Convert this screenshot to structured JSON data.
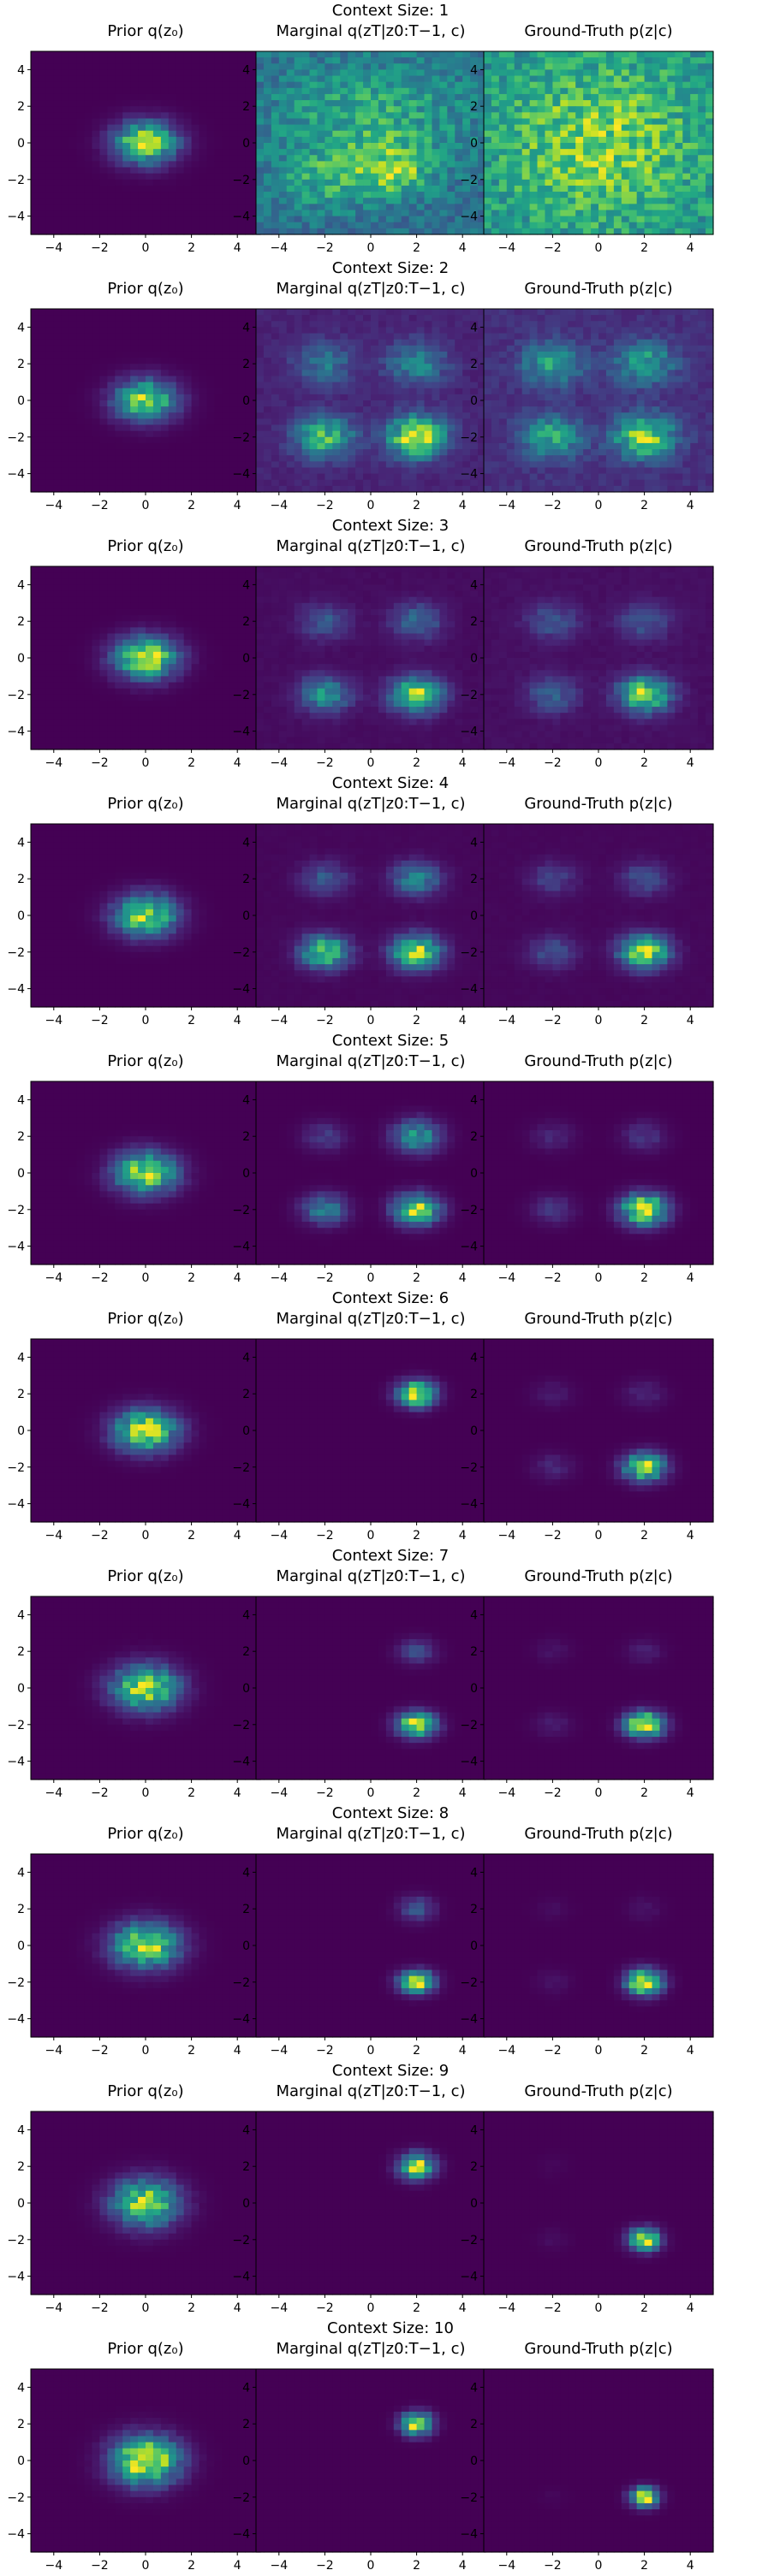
{
  "figure": {
    "colormap": "viridis",
    "axis_range": [
      -5,
      5
    ],
    "ticks": [
      -4,
      -2,
      0,
      2,
      4
    ]
  },
  "columns": [
    {
      "key": "prior",
      "title": "Prior q(z₀)"
    },
    {
      "key": "marginal",
      "title": "Marginal q(zT|z0:T−1, c)"
    },
    {
      "key": "ground_truth",
      "title": "Ground-Truth p(z|c)"
    }
  ],
  "chart_data": [
    {
      "type": "heatmap",
      "title": "Context Size: 1",
      "panels": [
        {
          "title": "Prior q(z₀)",
          "xlim": [
            -5,
            5
          ],
          "ylim": [
            -5,
            5
          ],
          "modes": [
            {
              "x": 0,
              "y": 0,
              "sx": 0.9,
              "sy": 0.75,
              "w": 1.0
            }
          ],
          "background": 0.0
        },
        {
          "title": "Marginal q(zT|z0:T−1, c)",
          "xlim": [
            -5,
            5
          ],
          "ylim": [
            -5,
            5
          ],
          "modes": [
            {
              "x": 1.0,
              "y": -1.5,
              "sx": 1.2,
              "sy": 1.0,
              "w": 0.5
            },
            {
              "x": -2.0,
              "y": -2.0,
              "sx": 1.5,
              "sy": 1.2,
              "w": 0.3
            },
            {
              "x": 0,
              "y": 1.5,
              "sx": 3.0,
              "sy": 2.0,
              "w": 0.35
            }
          ],
          "background": 0.45
        },
        {
          "title": "Ground-Truth p(z|c)",
          "xlim": [
            -5,
            5
          ],
          "ylim": [
            -5,
            5
          ],
          "modes": [
            {
              "x": 0,
              "y": 0,
              "sx": 3.0,
              "sy": 3.0,
              "w": 0.3
            }
          ],
          "background": 0.5
        }
      ]
    },
    {
      "type": "heatmap",
      "title": "Context Size: 2",
      "panels": [
        {
          "title": "Prior q(z₀)",
          "xlim": [
            -5,
            5
          ],
          "ylim": [
            -5,
            5
          ],
          "modes": [
            {
              "x": 0,
              "y": 0,
              "sx": 0.9,
              "sy": 0.75,
              "w": 1.0
            }
          ],
          "background": 0.0
        },
        {
          "title": "Marginal q(zT|z0:T−1, c)",
          "xlim": [
            -5,
            5
          ],
          "ylim": [
            -5,
            5
          ],
          "modes": [
            {
              "x": 2.0,
              "y": -2.0,
              "sx": 0.9,
              "sy": 0.8,
              "w": 1.0
            },
            {
              "x": -2.0,
              "y": -2.0,
              "sx": 0.9,
              "sy": 0.8,
              "w": 0.7
            },
            {
              "x": 2.0,
              "y": 2.0,
              "sx": 0.9,
              "sy": 0.8,
              "w": 0.45
            },
            {
              "x": -2.0,
              "y": 2.0,
              "sx": 0.9,
              "sy": 0.8,
              "w": 0.35
            }
          ],
          "background": 0.12
        },
        {
          "title": "Ground-Truth p(z|c)",
          "xlim": [
            -5,
            5
          ],
          "ylim": [
            -5,
            5
          ],
          "modes": [
            {
              "x": 2.0,
              "y": -2.0,
              "sx": 0.9,
              "sy": 0.8,
              "w": 0.8
            },
            {
              "x": -2.0,
              "y": -2.0,
              "sx": 0.9,
              "sy": 0.8,
              "w": 0.55
            },
            {
              "x": 2.0,
              "y": 2.0,
              "sx": 0.9,
              "sy": 0.8,
              "w": 0.5
            },
            {
              "x": -2.0,
              "y": 2.0,
              "sx": 0.9,
              "sy": 0.8,
              "w": 0.5
            }
          ],
          "background": 0.15
        }
      ]
    },
    {
      "type": "heatmap",
      "title": "Context Size: 3",
      "panels": [
        {
          "title": "Prior q(z₀)",
          "xlim": [
            -5,
            5
          ],
          "ylim": [
            -5,
            5
          ],
          "modes": [
            {
              "x": 0,
              "y": 0,
              "sx": 0.9,
              "sy": 0.75,
              "w": 1.0
            }
          ],
          "background": 0.0
        },
        {
          "title": "Marginal q(zT|z0:T−1, c)",
          "xlim": [
            -5,
            5
          ],
          "ylim": [
            -5,
            5
          ],
          "modes": [
            {
              "x": 2.0,
              "y": -2.0,
              "sx": 0.75,
              "sy": 0.65,
              "w": 1.0
            },
            {
              "x": -2.0,
              "y": -2.0,
              "sx": 0.75,
              "sy": 0.65,
              "w": 0.6
            },
            {
              "x": 2.0,
              "y": 2.0,
              "sx": 0.75,
              "sy": 0.65,
              "w": 0.4
            },
            {
              "x": -2.0,
              "y": 2.0,
              "sx": 0.75,
              "sy": 0.65,
              "w": 0.3
            }
          ],
          "background": 0.04
        },
        {
          "title": "Ground-Truth p(z|c)",
          "xlim": [
            -5,
            5
          ],
          "ylim": [
            -5,
            5
          ],
          "modes": [
            {
              "x": 2.0,
              "y": -2.0,
              "sx": 0.75,
              "sy": 0.65,
              "w": 1.0
            },
            {
              "x": -2.0,
              "y": -2.0,
              "sx": 0.75,
              "sy": 0.65,
              "w": 0.35
            },
            {
              "x": 2.0,
              "y": 2.0,
              "sx": 0.75,
              "sy": 0.65,
              "w": 0.3
            },
            {
              "x": -2.0,
              "y": 2.0,
              "sx": 0.75,
              "sy": 0.65,
              "w": 0.3
            }
          ],
          "background": 0.05
        }
      ]
    },
    {
      "type": "heatmap",
      "title": "Context Size: 4",
      "panels": [
        {
          "title": "Prior q(z₀)",
          "xlim": [
            -5,
            5
          ],
          "ylim": [
            -5,
            5
          ],
          "modes": [
            {
              "x": 0,
              "y": 0,
              "sx": 0.9,
              "sy": 0.75,
              "w": 1.0
            }
          ],
          "background": 0.0
        },
        {
          "title": "Marginal q(zT|z0:T−1, c)",
          "xlim": [
            -5,
            5
          ],
          "ylim": [
            -5,
            5
          ],
          "modes": [
            {
              "x": 2.0,
              "y": -2.0,
              "sx": 0.7,
              "sy": 0.6,
              "w": 1.0
            },
            {
              "x": -2.0,
              "y": -2.0,
              "sx": 0.7,
              "sy": 0.6,
              "w": 0.85
            },
            {
              "x": 2.0,
              "y": 2.0,
              "sx": 0.7,
              "sy": 0.6,
              "w": 0.5
            },
            {
              "x": -2.0,
              "y": 2.0,
              "sx": 0.7,
              "sy": 0.6,
              "w": 0.3
            }
          ],
          "background": 0.02
        },
        {
          "title": "Ground-Truth p(z|c)",
          "xlim": [
            -5,
            5
          ],
          "ylim": [
            -5,
            5
          ],
          "modes": [
            {
              "x": 2.0,
              "y": -2.0,
              "sx": 0.7,
              "sy": 0.6,
              "w": 1.0
            },
            {
              "x": -2.0,
              "y": -2.0,
              "sx": 0.7,
              "sy": 0.6,
              "w": 0.25
            },
            {
              "x": 2.0,
              "y": 2.0,
              "sx": 0.7,
              "sy": 0.6,
              "w": 0.25
            },
            {
              "x": -2.0,
              "y": 2.0,
              "sx": 0.7,
              "sy": 0.6,
              "w": 0.2
            }
          ],
          "background": 0.02
        }
      ]
    },
    {
      "type": "heatmap",
      "title": "Context Size: 5",
      "panels": [
        {
          "title": "Prior q(z₀)",
          "xlim": [
            -5,
            5
          ],
          "ylim": [
            -5,
            5
          ],
          "modes": [
            {
              "x": 0,
              "y": 0,
              "sx": 0.9,
              "sy": 0.75,
              "w": 1.0
            }
          ],
          "background": 0.0
        },
        {
          "title": "Marginal q(zT|z0:T−1, c)",
          "xlim": [
            -5,
            5
          ],
          "ylim": [
            -5,
            5
          ],
          "modes": [
            {
              "x": 2.0,
              "y": -2.0,
              "sx": 0.65,
              "sy": 0.55,
              "w": 1.0
            },
            {
              "x": -2.0,
              "y": -2.0,
              "sx": 0.65,
              "sy": 0.55,
              "w": 0.5
            },
            {
              "x": 2.0,
              "y": 2.0,
              "sx": 0.7,
              "sy": 0.6,
              "w": 0.6
            },
            {
              "x": -2.0,
              "y": 2.0,
              "sx": 0.65,
              "sy": 0.55,
              "w": 0.2
            }
          ],
          "background": 0.0
        },
        {
          "title": "Ground-Truth p(z|c)",
          "xlim": [
            -5,
            5
          ],
          "ylim": [
            -5,
            5
          ],
          "modes": [
            {
              "x": 2.0,
              "y": -2.0,
              "sx": 0.65,
              "sy": 0.55,
              "w": 1.0
            },
            {
              "x": -2.0,
              "y": -2.0,
              "sx": 0.65,
              "sy": 0.55,
              "w": 0.15
            },
            {
              "x": 2.0,
              "y": 2.0,
              "sx": 0.65,
              "sy": 0.55,
              "w": 0.15
            },
            {
              "x": -2.0,
              "y": 2.0,
              "sx": 0.65,
              "sy": 0.55,
              "w": 0.1
            }
          ],
          "background": 0.0
        }
      ]
    },
    {
      "type": "heatmap",
      "title": "Context Size: 6",
      "panels": [
        {
          "title": "Prior q(z₀)",
          "xlim": [
            -5,
            5
          ],
          "ylim": [
            -5,
            5
          ],
          "modes": [
            {
              "x": 0,
              "y": 0,
              "sx": 0.9,
              "sy": 0.75,
              "w": 1.0
            }
          ],
          "background": 0.0
        },
        {
          "title": "Marginal q(zT|z0:T−1, c)",
          "xlim": [
            -5,
            5
          ],
          "ylim": [
            -5,
            5
          ],
          "modes": [
            {
              "x": 2.0,
              "y": 2.0,
              "sx": 0.55,
              "sy": 0.45,
              "w": 1.0
            }
          ],
          "background": 0.0
        },
        {
          "title": "Ground-Truth p(z|c)",
          "xlim": [
            -5,
            5
          ],
          "ylim": [
            -5,
            5
          ],
          "modes": [
            {
              "x": 2.0,
              "y": -2.0,
              "sx": 0.6,
              "sy": 0.5,
              "w": 1.0
            },
            {
              "x": -2.0,
              "y": -2.0,
              "sx": 0.6,
              "sy": 0.5,
              "w": 0.12
            },
            {
              "x": 2.0,
              "y": 2.0,
              "sx": 0.6,
              "sy": 0.5,
              "w": 0.12
            },
            {
              "x": -2.0,
              "y": 2.0,
              "sx": 0.6,
              "sy": 0.5,
              "w": 0.08
            }
          ],
          "background": 0.0
        }
      ]
    },
    {
      "type": "heatmap",
      "title": "Context Size: 7",
      "panels": [
        {
          "title": "Prior q(z₀)",
          "xlim": [
            -5,
            5
          ],
          "ylim": [
            -5,
            5
          ],
          "modes": [
            {
              "x": 0,
              "y": 0,
              "sx": 0.95,
              "sy": 0.8,
              "w": 1.0
            }
          ],
          "background": 0.0
        },
        {
          "title": "Marginal q(zT|z0:T−1, c)",
          "xlim": [
            -5,
            5
          ],
          "ylim": [
            -5,
            5
          ],
          "modes": [
            {
              "x": 2.0,
              "y": -2.0,
              "sx": 0.55,
              "sy": 0.45,
              "w": 1.0
            },
            {
              "x": 2.0,
              "y": 2.0,
              "sx": 0.55,
              "sy": 0.45,
              "w": 0.25
            }
          ],
          "background": 0.0
        },
        {
          "title": "Ground-Truth p(z|c)",
          "xlim": [
            -5,
            5
          ],
          "ylim": [
            -5,
            5
          ],
          "modes": [
            {
              "x": 2.0,
              "y": -2.0,
              "sx": 0.55,
              "sy": 0.45,
              "w": 1.0
            },
            {
              "x": -2.0,
              "y": -2.0,
              "sx": 0.55,
              "sy": 0.45,
              "w": 0.08
            },
            {
              "x": 2.0,
              "y": 2.0,
              "sx": 0.55,
              "sy": 0.45,
              "w": 0.08
            },
            {
              "x": -2.0,
              "y": 2.0,
              "sx": 0.55,
              "sy": 0.45,
              "w": 0.05
            }
          ],
          "background": 0.0
        }
      ]
    },
    {
      "type": "heatmap",
      "title": "Context Size: 8",
      "panels": [
        {
          "title": "Prior q(z₀)",
          "xlim": [
            -5,
            5
          ],
          "ylim": [
            -5,
            5
          ],
          "modes": [
            {
              "x": 0,
              "y": 0,
              "sx": 0.95,
              "sy": 0.8,
              "w": 1.0
            }
          ],
          "background": 0.0
        },
        {
          "title": "Marginal q(zT|z0:T−1, c)",
          "xlim": [
            -5,
            5
          ],
          "ylim": [
            -5,
            5
          ],
          "modes": [
            {
              "x": 2.0,
              "y": -2.0,
              "sx": 0.5,
              "sy": 0.4,
              "w": 1.0
            },
            {
              "x": 2.0,
              "y": 2.0,
              "sx": 0.5,
              "sy": 0.45,
              "w": 0.3
            }
          ],
          "background": 0.0
        },
        {
          "title": "Ground-Truth p(z|c)",
          "xlim": [
            -5,
            5
          ],
          "ylim": [
            -5,
            5
          ],
          "modes": [
            {
              "x": 2.0,
              "y": -2.0,
              "sx": 0.5,
              "sy": 0.45,
              "w": 1.0
            },
            {
              "x": -2.0,
              "y": -2.0,
              "sx": 0.5,
              "sy": 0.45,
              "w": 0.05
            },
            {
              "x": 2.0,
              "y": 2.0,
              "sx": 0.5,
              "sy": 0.45,
              "w": 0.05
            },
            {
              "x": -2.0,
              "y": 2.0,
              "sx": 0.5,
              "sy": 0.45,
              "w": 0.03
            }
          ],
          "background": 0.0
        }
      ]
    },
    {
      "type": "heatmap",
      "title": "Context Size: 9",
      "panels": [
        {
          "title": "Prior q(z₀)",
          "xlim": [
            -5,
            5
          ],
          "ylim": [
            -5,
            5
          ],
          "modes": [
            {
              "x": 0,
              "y": 0,
              "sx": 0.95,
              "sy": 0.85,
              "w": 1.0
            }
          ],
          "background": 0.0
        },
        {
          "title": "Marginal q(zT|z0:T−1, c)",
          "xlim": [
            -5,
            5
          ],
          "ylim": [
            -5,
            5
          ],
          "modes": [
            {
              "x": 2.0,
              "y": 2.0,
              "sx": 0.5,
              "sy": 0.45,
              "w": 1.0
            }
          ],
          "background": 0.0
        },
        {
          "title": "Ground-Truth p(z|c)",
          "xlim": [
            -5,
            5
          ],
          "ylim": [
            -5,
            5
          ],
          "modes": [
            {
              "x": 2.0,
              "y": -2.0,
              "sx": 0.45,
              "sy": 0.4,
              "w": 1.0
            },
            {
              "x": -2.0,
              "y": -2.0,
              "sx": 0.45,
              "sy": 0.4,
              "w": 0.04
            },
            {
              "x": -2.0,
              "y": 2.0,
              "sx": 0.45,
              "sy": 0.4,
              "w": 0.02
            }
          ],
          "background": 0.0
        }
      ]
    },
    {
      "type": "heatmap",
      "title": "Context Size: 10",
      "panels": [
        {
          "title": "Prior q(z₀)",
          "xlim": [
            -5,
            5
          ],
          "ylim": [
            -5,
            5
          ],
          "modes": [
            {
              "x": 0,
              "y": 0,
              "sx": 0.95,
              "sy": 0.85,
              "w": 1.0
            }
          ],
          "background": 0.0
        },
        {
          "title": "Marginal q(zT|z0:T−1, c)",
          "xlim": [
            -5,
            5
          ],
          "ylim": [
            -5,
            5
          ],
          "modes": [
            {
              "x": 2.0,
              "y": 2.0,
              "sx": 0.45,
              "sy": 0.4,
              "w": 1.0
            }
          ],
          "background": 0.0
        },
        {
          "title": "Ground-Truth p(z|c)",
          "xlim": [
            -5,
            5
          ],
          "ylim": [
            -5,
            5
          ],
          "modes": [
            {
              "x": 2.0,
              "y": -2.0,
              "sx": 0.4,
              "sy": 0.35,
              "w": 1.0
            },
            {
              "x": -2.0,
              "y": -2.0,
              "sx": 0.4,
              "sy": 0.35,
              "w": 0.02
            }
          ],
          "background": 0.0
        }
      ]
    }
  ]
}
